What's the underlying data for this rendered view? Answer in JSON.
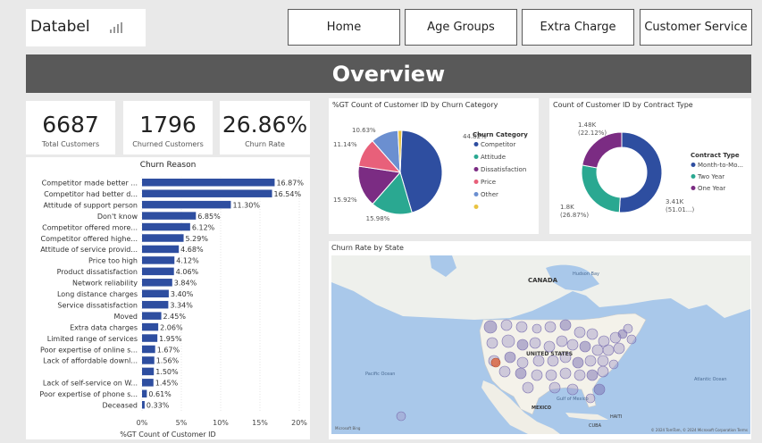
{
  "logo": {
    "text": "Databel"
  },
  "nav": {
    "home": "Home",
    "age_groups": "Age Groups",
    "extra_charge": "Extra Charge",
    "customer_service": "Customer Service"
  },
  "banner": {
    "title": "Overview"
  },
  "kpis": {
    "total_customers": {
      "value": "6687",
      "label": "Total Customers"
    },
    "churned_customers": {
      "value": "1796",
      "label": "Churned Customers"
    },
    "churn_rate": {
      "value": "26.86%",
      "label": "Churn Rate"
    }
  },
  "visuals": {
    "churn_reason_title": "Churn Reason",
    "churn_category_title": "%GT Count of Customer ID by Churn Category",
    "contract_title": "Count of Customer ID by Contract Type",
    "map_title": "Churn Rate by State"
  },
  "map": {
    "labels": {
      "canada": "CANADA",
      "united_states": "UNITED STATES",
      "mexico": "MEXICO",
      "pacific_ocean": "Pacific\nOcean",
      "atlantic_ocean": "Atlantic\nOcean",
      "hudson_bay": "Hudson Bay",
      "gulf_of_mexico": "Gulf of Mexico",
      "cuba": "CUBA",
      "haiti": "HAITI"
    },
    "attribution": "© 2024 TomTom, © 2024 Microsoft Corporation  Terms",
    "bing": "Microsoft Bing"
  },
  "chart_data": [
    {
      "type": "bar",
      "orientation": "horizontal",
      "title": "Churn Reason",
      "xlabel": "%GT Count of Customer ID",
      "xlim": [
        0,
        20
      ],
      "x_ticks": [
        "0%",
        "5%",
        "10%",
        "15%",
        "20%"
      ],
      "categories": [
        "Competitor made better ...",
        "Competitor had better d...",
        "Attitude of support person",
        "Don't know",
        "Competitor offered more...",
        "Competitor offered highe...",
        "Attitude of service provid...",
        "Price too high",
        "Product dissatisfaction",
        "Network reliability",
        "Long distance charges",
        "Service dissatisfaction",
        "Moved",
        "Extra data charges",
        "Limited range of services",
        "Poor expertise of online s...",
        "Lack of affordable downl...",
        "",
        "Lack of self-service on W...",
        "Poor expertise of phone s...",
        "Deceased"
      ],
      "values": [
        16.87,
        16.54,
        11.3,
        6.85,
        6.12,
        5.29,
        4.68,
        4.12,
        4.06,
        3.84,
        3.4,
        3.34,
        2.45,
        2.06,
        1.95,
        1.67,
        1.56,
        1.5,
        1.45,
        0.61,
        0.33
      ],
      "value_labels": [
        "16.87%",
        "16.54%",
        "11.30%",
        "6.85%",
        "6.12%",
        "5.29%",
        "4.68%",
        "4.12%",
        "4.06%",
        "3.84%",
        "3.40%",
        "3.34%",
        "2.45%",
        "2.06%",
        "1.95%",
        "1.67%",
        "1.56%",
        "1.50%",
        "1.45%",
        "0.61%",
        "0.33%"
      ],
      "color": "#2e4ea0"
    },
    {
      "type": "pie",
      "title": "%GT Count of Customer ID by Churn Category",
      "legend_title": "Churn Category",
      "legend_position": "right",
      "categories": [
        "Competitor",
        "Attitude",
        "Dissatisfaction",
        "Price",
        "Other",
        ""
      ],
      "values": [
        44.82,
        15.98,
        15.92,
        11.14,
        10.63,
        1.51
      ],
      "value_labels": [
        "44.82%",
        "15.98%",
        "15.92%",
        "11.14%",
        "10.63%",
        ""
      ],
      "colors": [
        "#2e4ea0",
        "#2aa891",
        "#7b2c83",
        "#e8607a",
        "#6b8fd0",
        "#e9c342"
      ]
    },
    {
      "type": "pie",
      "subtype": "donut",
      "title": "Count of Customer ID by Contract Type",
      "legend_title": "Contract Type",
      "legend_position": "right",
      "categories": [
        "Month-to-Mo...",
        "Two Year",
        "One Year"
      ],
      "values": [
        3410,
        1800,
        1480
      ],
      "value_labels": [
        "3.41K\n(51.01...)",
        "1.8K\n(26.87%)",
        "1.48K\n(22.12%)"
      ],
      "colors": [
        "#2e4ea0",
        "#2aa891",
        "#7b2c83"
      ]
    }
  ]
}
